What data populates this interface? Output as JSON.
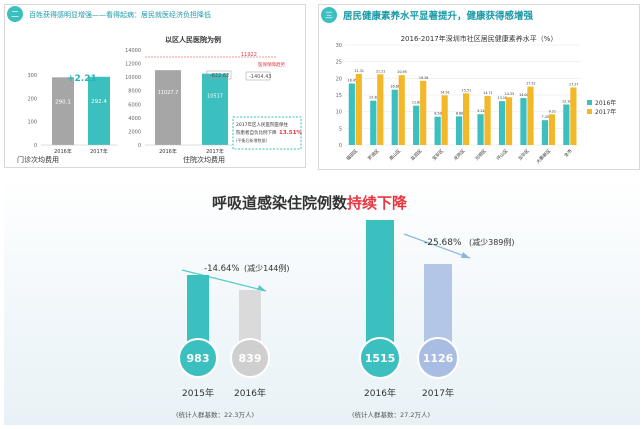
{
  "panel1": {
    "badge": "二",
    "header": "百姓获得感明显增强——看得起病：居民就医经济负担降低",
    "left_chart": {
      "delta_label": "+2.21",
      "bars": [
        {
          "year": "2016年",
          "value": 290.1
        },
        {
          "year": "2017年",
          "value": 292.4
        }
      ],
      "value_texts": [
        "290.1",
        "292.4"
      ],
      "title": "门诊次均费用",
      "yticks": [
        "0",
        "100",
        "200",
        "300"
      ]
    },
    "right_chart": {
      "subtitle": "以区人民医院为例",
      "bars": [
        {
          "year": "2016年",
          "value": 11027.7
        },
        {
          "year": "2017年",
          "value": 10517
        }
      ],
      "value_texts": [
        "11027.7",
        "10517"
      ],
      "callout_a": "-822.62",
      "callout_b": "-1404.43",
      "top_value": "11922",
      "trend_label": "医保保障趋势",
      "note_line1": "2017年区人民医院医保住",
      "note_line2": "院患者自负比例下降",
      "note_pct": "13.51%",
      "note_line3": "(平衡后新增数据)",
      "title": "住院次均费用",
      "yticks": [
        "0",
        "2000",
        "4000",
        "6000",
        "8000",
        "10000",
        "12000",
        "14000"
      ]
    }
  },
  "panel2": {
    "badge": "三",
    "header": "居民健康素养水平显著提升，健康获得感增强",
    "chart_title": "2016-2017年深圳市社区居民健康素养水平（%）",
    "yticks": [
      "0",
      "5",
      "10",
      "15",
      "20",
      "25",
      "30"
    ],
    "legend": [
      "2016年",
      "2017年"
    ],
    "colors": {
      "y2016": "#3bbfbf",
      "y2017": "#f2b82a"
    }
  },
  "panel3": {
    "title_prefix": "呼吸道感染住院例数",
    "title_highlight": "持续下降",
    "highlight_color": "#e8373f",
    "left": {
      "change": "-14.64%",
      "change_note": "(减少144例)",
      "years": [
        "2015年",
        "2016年"
      ],
      "values": [
        "983",
        "839"
      ],
      "basis": "(统计人群基数：22.3万人)"
    },
    "right": {
      "change": "-25.68%",
      "change_note": "(减少389例)",
      "years": [
        "2016年",
        "2017年"
      ],
      "values": [
        "1515",
        "1126"
      ],
      "basis": "(统计人群基数：27.2万人)"
    }
  },
  "chart_data": [
    {
      "type": "bar",
      "title": "门诊次均费用",
      "categories": [
        "2016年",
        "2017年"
      ],
      "values": [
        290.1,
        292.4
      ],
      "ylim": [
        0,
        300
      ]
    },
    {
      "type": "bar",
      "title": "住院次均费用",
      "categories": [
        "2016年",
        "2017年"
      ],
      "values": [
        11027.7,
        10517
      ],
      "ylim": [
        0,
        14000
      ]
    },
    {
      "type": "bar",
      "title": "2016-2017年深圳市社区居民健康素养水平（%）",
      "categories": [
        "福田区",
        "罗湖区",
        "南山区",
        "盐田区",
        "宝安区",
        "龙岗区",
        "光明区",
        "坪山区",
        "龙华区",
        "大鹏新区",
        "全市"
      ],
      "series": [
        {
          "name": "2016年",
          "values": [
            18.45,
            13.3,
            16.6,
            11.8,
            8.5,
            8.6,
            9.24,
            13.16,
            14.08,
            7.45,
            12.16
          ]
        },
        {
          "name": "2017年",
          "values": [
            21.31,
            21.21,
            20.95,
            19.26,
            14.91,
            15.51,
            14.71,
            14.33,
            17.52,
            9.21,
            17.27
          ]
        }
      ],
      "ylim": [
        0,
        30
      ]
    },
    {
      "type": "bar",
      "title": "呼吸道感染住院例数持续下降",
      "categories": [
        "2015年",
        "2016年"
      ],
      "values": [
        983,
        839
      ]
    },
    {
      "type": "bar",
      "title": "呼吸道感染住院例数持续下降",
      "categories": [
        "2016年",
        "2017年"
      ],
      "values": [
        1515,
        1126
      ]
    }
  ]
}
